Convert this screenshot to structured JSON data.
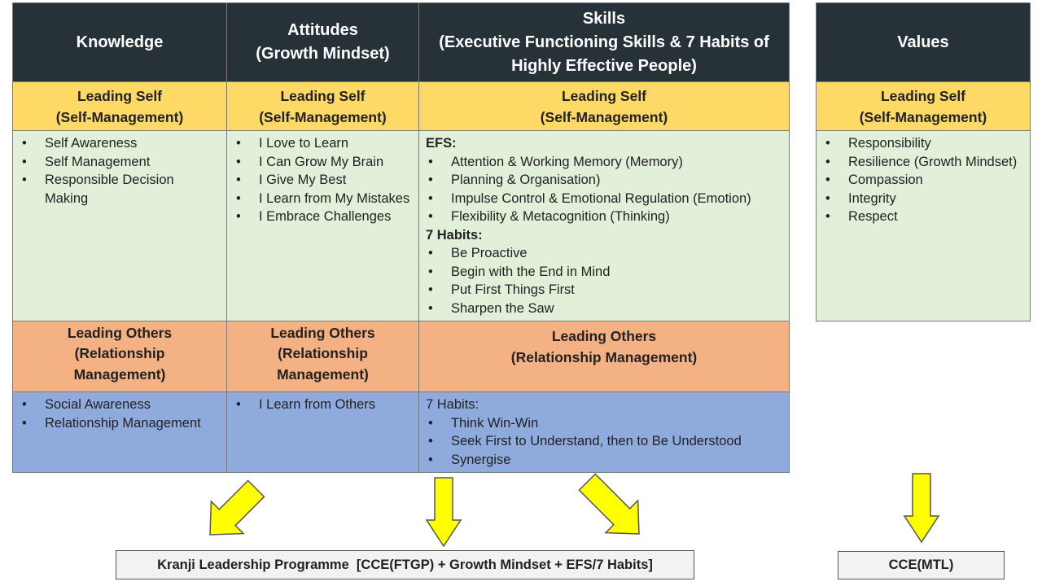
{
  "columns": [
    {
      "header": [
        "Knowledge"
      ],
      "self_title": [
        "Leading Self",
        "(Self-Management)"
      ],
      "self_items": [
        "Self Awareness",
        "Self Management",
        "Responsible Decision Making"
      ],
      "others_title": [
        "Leading Others",
        "(Relationship",
        "Management)"
      ],
      "others_items": [
        "Social Awareness",
        "Relationship Management"
      ]
    },
    {
      "header": [
        "Attitudes",
        "(Growth Mindset)"
      ],
      "self_title": [
        "Leading Self",
        "(Self-Management)"
      ],
      "self_items": [
        "I Love to Learn",
        "I Can Grow My Brain",
        "I Give My Best",
        "I Learn from My Mistakes",
        "I Embrace Challenges"
      ],
      "others_title": [
        "Leading Others",
        "(Relationship",
        "Management)"
      ],
      "others_items": [
        "I Learn from Others"
      ]
    },
    {
      "header": [
        "Skills",
        "(Executive Functioning Skills & 7 Habits of",
        "Highly Effective People)"
      ],
      "self_title": [
        "Leading Self",
        "(Self-Management)"
      ],
      "efs_label": "EFS:",
      "efs_items": [
        "Attention & Working Memory (Memory)",
        "Planning & Organisation)",
        "Impulse Control & Emotional Regulation (Emotion)",
        "Flexibility & Metacognition (Thinking)"
      ],
      "habits_label": "7 Habits:",
      "habits_items": [
        "Be Proactive",
        "Begin with the End in Mind",
        "Put First Things First",
        "Sharpen the Saw"
      ],
      "others_title": [
        "Leading Others",
        "(Relationship Management)"
      ],
      "others_habits_label": "7 Habits:",
      "others_items": [
        "Think Win-Win",
        "Seek First to Understand, then to Be Understood",
        "Synergise"
      ]
    }
  ],
  "values": {
    "header": "Values",
    "self_title": [
      "Leading Self",
      "(Self-Management)"
    ],
    "items": [
      "Responsibility",
      "Resilience (Growth Mindset)",
      "Compassion",
      "Integrity",
      "Respect"
    ]
  },
  "programme_box": "Kranji Leadership Programme  [CCE(FTGP) + Growth Mindset + EFS/7 Habits]",
  "mtl_box": "CCE(MTL)",
  "colors": {
    "header_bg": "#263238",
    "leading_self_bg": "#ffd966",
    "self_content_bg": "#e2efd9",
    "leading_others_bg": "#f4b183",
    "others_content_bg": "#8faadc",
    "arrow_fill": "#ffff00"
  }
}
